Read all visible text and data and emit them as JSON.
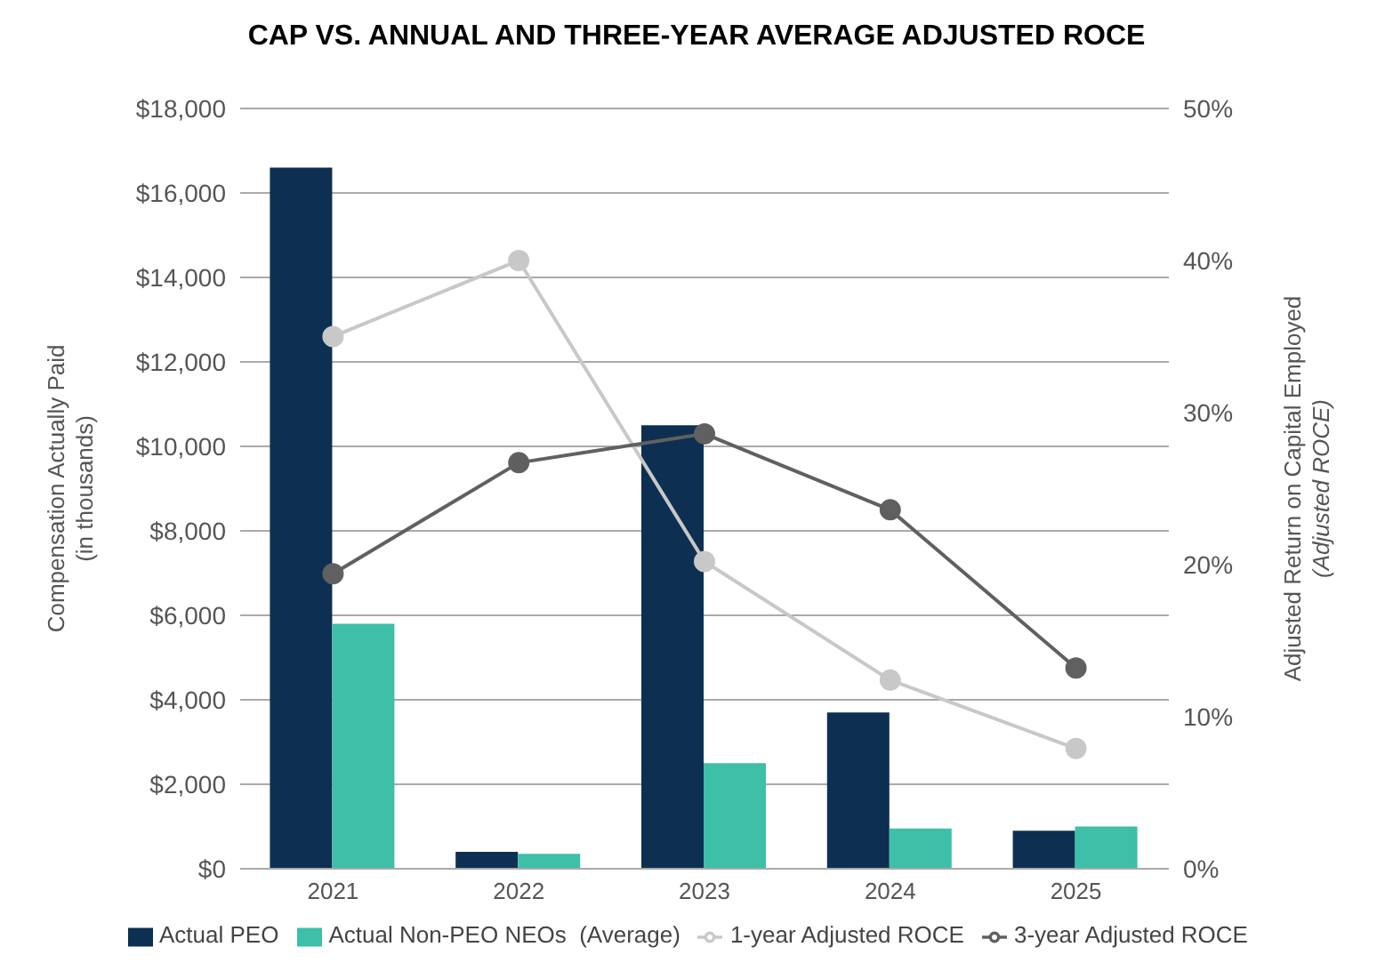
{
  "chart_data": {
    "type": "bar",
    "title": "CAP VS. ANNUAL AND THREE-YEAR AVERAGE ADJUSTED ROCE",
    "ylabel": "Compensation Actually Paid\n(in thousands)",
    "y2label": "Adjusted Return on Capital Employed\n(Adjusted ROCE)",
    "categories": [
      "2021",
      "2022",
      "2023",
      "2024",
      "2025"
    ],
    "series": [
      {
        "name": "Actual PEO",
        "color": "#0d2f52",
        "values": [
          16600,
          400,
          10500,
          3700,
          900
        ]
      },
      {
        "name": "Actual Non-PEO NEOs  (Average)",
        "color": "#3dbfa8",
        "values": [
          5800,
          350,
          2500,
          950,
          1000
        ]
      },
      {
        "name": "1-year Adjusted ROCE",
        "type": "line",
        "axis": "y2",
        "color": "#c8c8c8",
        "values": [
          35,
          40,
          20.2,
          12.4,
          7.9
        ]
      },
      {
        "name": "3-year Adjusted ROCE",
        "type": "line",
        "axis": "y2",
        "color": "#606060",
        "values": [
          19.4,
          26.7,
          28.6,
          23.6,
          13.2
        ]
      }
    ],
    "ylim": [
      0,
      18000
    ],
    "yticks": [
      {
        "value": 0,
        "label": "$0"
      },
      {
        "value": 2000,
        "label": "$2,000"
      },
      {
        "value": 4000,
        "label": "$4,000"
      },
      {
        "value": 6000,
        "label": "$6,000"
      },
      {
        "value": 8000,
        "label": "$8,000"
      },
      {
        "value": 10000,
        "label": "$10,000"
      },
      {
        "value": 12000,
        "label": "$12,000"
      },
      {
        "value": 14000,
        "label": "$14,000"
      },
      {
        "value": 16000,
        "label": "$16,000"
      },
      {
        "value": 18000,
        "label": "$18,000"
      }
    ],
    "y2lim": [
      0,
      50
    ],
    "y2ticks": [
      {
        "value": 0,
        "label": "0%"
      },
      {
        "value": 10,
        "label": "10%"
      },
      {
        "value": 20,
        "label": "20%"
      },
      {
        "value": 30,
        "label": "30%"
      },
      {
        "value": 40,
        "label": "40%"
      },
      {
        "value": 50,
        "label": "50%"
      }
    ],
    "grid": "y",
    "legend": "bottom",
    "marker": "circle",
    "line_style": "solid"
  }
}
